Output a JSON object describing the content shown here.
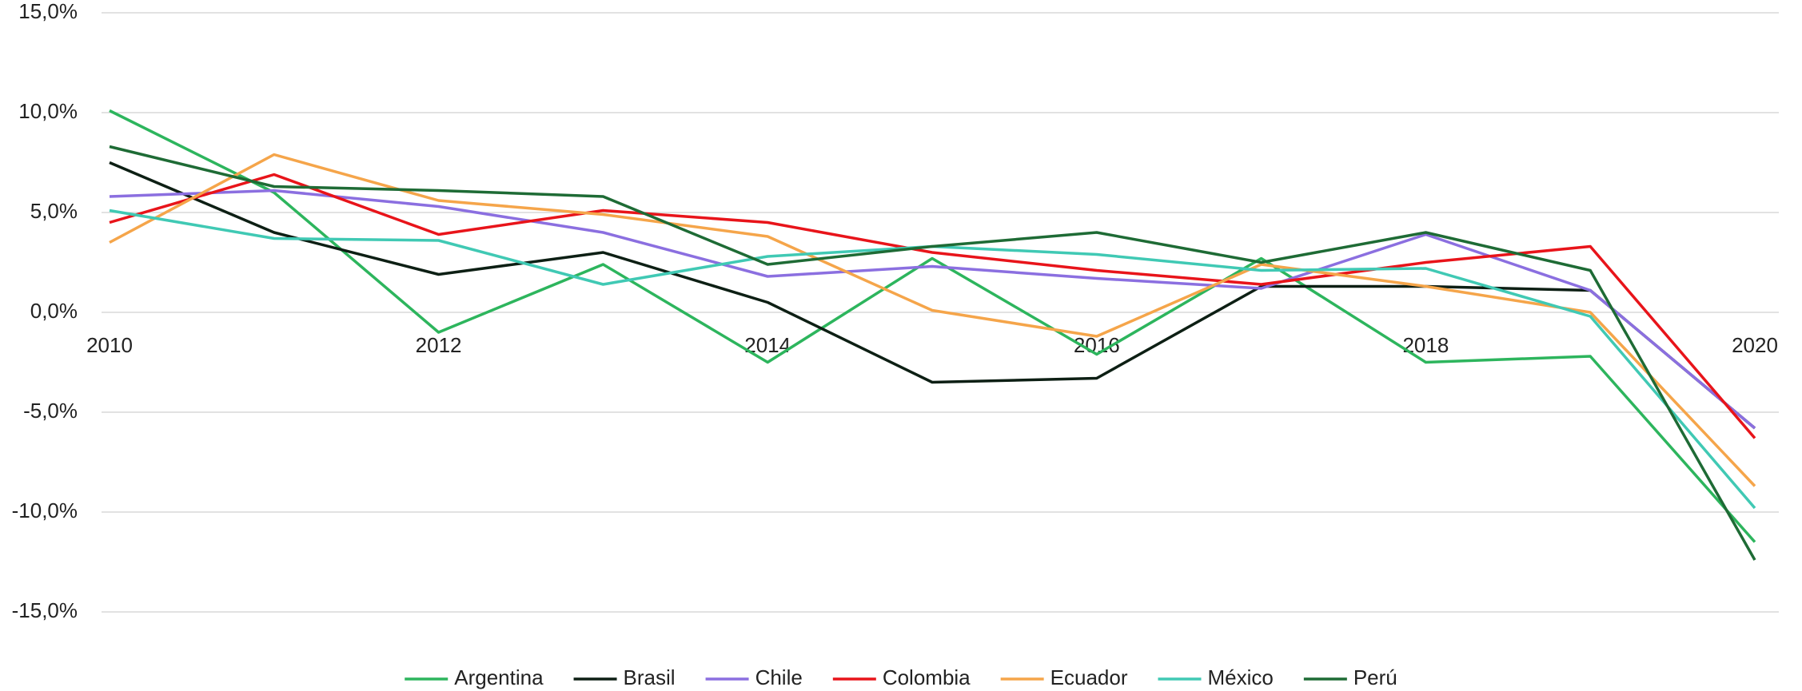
{
  "chart_data": {
    "type": "line",
    "x": [
      2010,
      2011,
      2012,
      2013,
      2014,
      2015,
      2016,
      2017,
      2018,
      2019,
      2020
    ],
    "xlim": [
      2010,
      2020
    ],
    "xticks": [
      2010,
      2012,
      2014,
      2016,
      2018,
      2020
    ],
    "ylim": [
      -15,
      15
    ],
    "yticks": [
      {
        "value": -15,
        "label": "-15,0%"
      },
      {
        "value": -10,
        "label": "-10,0%"
      },
      {
        "value": -5,
        "label": "-5,0%"
      },
      {
        "value": 0,
        "label": "0,0%"
      },
      {
        "value": 5,
        "label": "5,0%"
      },
      {
        "value": 10,
        "label": "10,0%"
      },
      {
        "value": 15,
        "label": "15,0%"
      }
    ],
    "grid": true,
    "legend": "bottom",
    "series": [
      {
        "name": "Argentina",
        "color": "#2db55d",
        "values": [
          10.1,
          6.0,
          -1.0,
          2.4,
          -2.5,
          2.7,
          -2.1,
          2.7,
          -2.5,
          -2.2,
          -11.5
        ]
      },
      {
        "name": "Brasil",
        "color": "#0d1f14",
        "values": [
          7.5,
          4.0,
          1.9,
          3.0,
          0.5,
          -3.5,
          -3.3,
          1.3,
          1.3,
          1.1,
          -5.8
        ]
      },
      {
        "name": "Chile",
        "color": "#8b6fe0",
        "values": [
          5.8,
          6.1,
          5.3,
          4.0,
          1.8,
          2.3,
          1.7,
          1.2,
          3.9,
          1.1,
          -5.8
        ]
      },
      {
        "name": "Colombia",
        "color": "#e8141a",
        "values": [
          4.5,
          6.9,
          3.9,
          5.1,
          4.5,
          3.0,
          2.1,
          1.4,
          2.5,
          3.3,
          -6.3
        ]
      },
      {
        "name": "Ecuador",
        "color": "#f5a54a",
        "values": [
          3.5,
          7.9,
          5.6,
          4.9,
          3.8,
          0.1,
          -1.2,
          2.4,
          1.3,
          0.0,
          -8.7
        ]
      },
      {
        "name": "México",
        "color": "#40c9b4",
        "values": [
          5.1,
          3.7,
          3.6,
          1.4,
          2.8,
          3.3,
          2.9,
          2.1,
          2.2,
          -0.2,
          -9.8
        ]
      },
      {
        "name": "Perú",
        "color": "#1e6b35",
        "values": [
          8.3,
          6.3,
          6.1,
          5.8,
          2.4,
          3.3,
          4.0,
          2.5,
          4.0,
          2.1,
          -12.4
        ]
      }
    ]
  }
}
